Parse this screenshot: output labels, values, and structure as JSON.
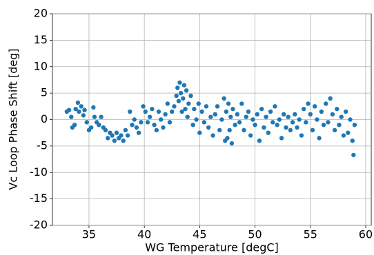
{
  "chart_data": {
    "type": "scatter",
    "x_label": "WG Temperature [degC]",
    "y_label": "Vc Loop Phase Shift [deg]",
    "xlim": [
      31.7,
      60.5
    ],
    "ylim": [
      -20,
      20
    ],
    "xticks": [
      35,
      40,
      45,
      50,
      55,
      60
    ],
    "yticks": [
      -20,
      -15,
      -10,
      -5,
      0,
      5,
      10,
      15,
      20
    ],
    "grid": true,
    "color": "#1f77b4",
    "x": [
      33.0,
      33.2,
      33.4,
      33.5,
      33.7,
      33.8,
      34.0,
      34.1,
      34.3,
      34.5,
      34.6,
      34.8,
      35.0,
      35.2,
      35.4,
      35.5,
      35.7,
      35.9,
      36.1,
      36.3,
      36.5,
      36.7,
      36.9,
      37.1,
      37.3,
      37.5,
      37.7,
      37.9,
      38.1,
      38.3,
      38.5,
      38.7,
      38.9,
      39.1,
      39.3,
      39.5,
      39.7,
      39.9,
      40.1,
      40.3,
      40.5,
      40.7,
      40.9,
      41.1,
      41.3,
      41.5,
      41.7,
      41.9,
      42.1,
      42.3,
      42.5,
      42.7,
      42.9,
      43.0,
      43.1,
      43.2,
      43.3,
      43.4,
      43.5,
      43.6,
      43.7,
      43.8,
      43.9,
      44.0,
      44.2,
      44.4,
      44.5,
      44.7,
      44.9,
      45.0,
      45.2,
      45.4,
      45.6,
      45.8,
      46.0,
      46.2,
      46.4,
      46.6,
      46.8,
      47.0,
      47.2,
      47.3,
      47.4,
      47.5,
      47.6,
      47.7,
      47.8,
      47.9,
      48.0,
      48.2,
      48.4,
      48.6,
      48.8,
      49.0,
      49.2,
      49.4,
      49.6,
      49.8,
      50.0,
      50.2,
      50.4,
      50.6,
      50.8,
      51.0,
      51.2,
      51.4,
      51.6,
      51.8,
      52.0,
      52.2,
      52.4,
      52.6,
      52.8,
      53.0,
      53.2,
      53.4,
      53.6,
      53.8,
      54.0,
      54.2,
      54.4,
      54.6,
      54.8,
      55.0,
      55.2,
      55.4,
      55.6,
      55.8,
      56.0,
      56.2,
      56.4,
      56.6,
      56.8,
      57.0,
      57.2,
      57.4,
      57.6,
      57.8,
      58.0,
      58.2,
      58.4,
      58.6,
      58.8,
      58.9,
      59.0
    ],
    "values": [
      1.5,
      1.8,
      0.5,
      -1.5,
      -1.0,
      2.0,
      3.2,
      1.5,
      2.5,
      0.8,
      1.8,
      -0.5,
      -2.0,
      -1.5,
      2.3,
      0.5,
      -0.5,
      -1.0,
      0.5,
      -1.5,
      -2.0,
      -3.5,
      -2.5,
      -3.0,
      -4.0,
      -2.5,
      -3.5,
      -3.0,
      -4.0,
      -2.0,
      -3.0,
      1.5,
      -1.0,
      0.0,
      -1.5,
      -2.5,
      -0.5,
      2.5,
      1.5,
      -0.5,
      0.5,
      2.0,
      -1.0,
      -2.0,
      1.5,
      0.0,
      -1.5,
      1.0,
      3.0,
      -0.5,
      1.5,
      2.5,
      4.5,
      6.0,
      3.5,
      7.0,
      5.0,
      1.5,
      4.0,
      6.5,
      2.0,
      5.5,
      0.5,
      3.0,
      4.5,
      -1.0,
      2.0,
      0.0,
      3.0,
      -2.5,
      1.5,
      -0.5,
      2.5,
      -1.5,
      0.5,
      -3.0,
      1.0,
      2.5,
      -2.0,
      0.0,
      4.0,
      -4.0,
      1.5,
      -3.5,
      3.0,
      -2.0,
      0.5,
      -4.5,
      2.0,
      -1.0,
      1.0,
      -0.5,
      3.0,
      -2.0,
      0.5,
      1.5,
      -3.0,
      0.0,
      -1.0,
      1.0,
      -4.0,
      2.0,
      -1.5,
      0.5,
      -2.5,
      1.5,
      -0.5,
      2.5,
      -1.0,
      0.0,
      -3.5,
      1.0,
      -1.5,
      0.5,
      -2.0,
      -0.5,
      1.0,
      -1.5,
      0.0,
      -3.0,
      2.0,
      -0.5,
      3.0,
      1.0,
      -2.0,
      2.5,
      0.0,
      -3.5,
      1.5,
      -1.0,
      3.0,
      -0.5,
      4.0,
      1.0,
      -2.0,
      2.0,
      -1.0,
      0.5,
      -3.0,
      1.5,
      -2.5,
      0.0,
      -4.0,
      -6.7,
      -1.0
    ]
  }
}
